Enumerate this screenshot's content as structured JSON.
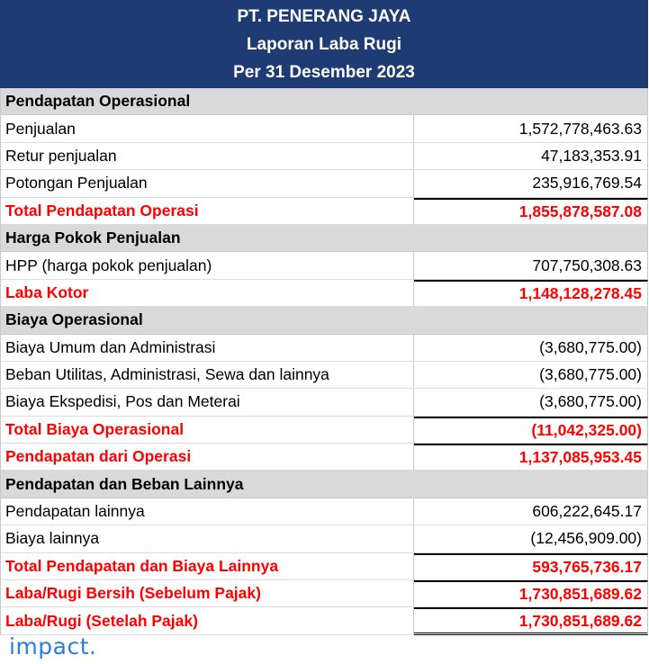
{
  "header": {
    "company": "PT. PENERANG JAYA",
    "title": "Laporan Laba Rugi",
    "period": "Per 31 Desember 2023"
  },
  "sections": {
    "operating_revenue": {
      "title": "Pendapatan Operasional",
      "rows": [
        {
          "label": "Penjualan",
          "value": "1,572,778,463.63"
        },
        {
          "label": "Retur penjualan",
          "value": "47,183,353.91"
        },
        {
          "label": "Potongan Penjualan",
          "value": "235,916,769.54"
        }
      ],
      "total": {
        "label": "Total Pendapatan Operasi",
        "value": "1,855,878,587.08"
      }
    },
    "cogs": {
      "title": "Harga Pokok Penjualan",
      "rows": [
        {
          "label": "HPP (harga pokok penjualan)",
          "value": "707,750,308.63"
        }
      ],
      "total": {
        "label": "Laba Kotor",
        "value": "1,148,128,278.45"
      }
    },
    "operating_expenses": {
      "title": "Biaya Operasional",
      "rows": [
        {
          "label": "Biaya Umum dan Administrasi",
          "value": "(3,680,775.00)"
        },
        {
          "label": "Beban Utilitas, Administrasi, Sewa dan lainnya",
          "value": "(3,680,775.00)"
        },
        {
          "label": "Biaya Ekspedisi, Pos dan Meterai",
          "value": "(3,680,775.00)"
        }
      ],
      "total": {
        "label": "Total Biaya Operasional",
        "value": "(11,042,325.00)"
      },
      "operating_income": {
        "label": "Pendapatan dari Operasi",
        "value": "1,137,085,953.45"
      }
    },
    "other": {
      "title": "Pendapatan dan Beban Lainnya",
      "rows": [
        {
          "label": "Pendapatan lainnya",
          "value": "606,222,645.17"
        },
        {
          "label": "Biaya lainnya",
          "value": "(12,456,909.00)"
        }
      ],
      "total": {
        "label": "Total Pendapatan dan Biaya Lainnya",
        "value": "593,765,736.17"
      }
    }
  },
  "results": {
    "before_tax": {
      "label": "Laba/Rugi Bersih (Sebelum Pajak)",
      "value": "1,730,851,689.62"
    },
    "after_tax": {
      "label": "Laba/Rugi (Setelah Pajak)",
      "value": "1,730,851,689.62"
    }
  },
  "logo": "impact.",
  "colors": {
    "header_bg": "#1f3b73",
    "section_bg": "#d9d9d9",
    "total_text": "#ff0000",
    "logo": "#2a7de1"
  }
}
